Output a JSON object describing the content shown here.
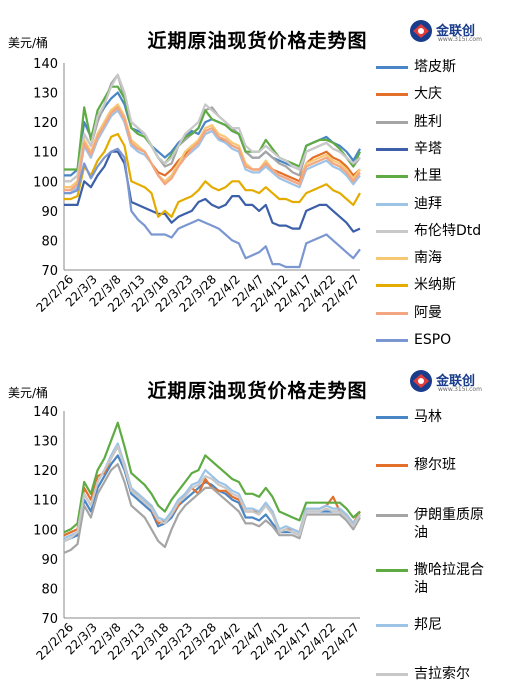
{
  "chart_data": [
    {
      "type": "line",
      "title": "近期原油现货价格走势图",
      "ylabel": "美元/桶",
      "ylim": [
        70,
        140
      ],
      "yticks": [
        70,
        80,
        90,
        100,
        110,
        120,
        130,
        140
      ],
      "xticks": [
        "22/2/26",
        "22/3/3",
        "22/3/8",
        "22/3/13",
        "22/3/18",
        "22/3/23",
        "22/3/28",
        "22/4/2",
        "22/4/7",
        "22/4/12",
        "22/4/17",
        "22/4/22",
        "22/4/27"
      ],
      "x": [
        "2/24",
        "2/25",
        "2/28",
        "3/1",
        "3/2",
        "3/3",
        "3/4",
        "3/7",
        "3/8",
        "3/9",
        "3/10",
        "3/11",
        "3/14",
        "3/15",
        "3/16",
        "3/17",
        "3/18",
        "3/21",
        "3/22",
        "3/23",
        "3/24",
        "3/25",
        "3/28",
        "3/29",
        "3/30",
        "3/31",
        "4/1",
        "4/4",
        "4/5",
        "4/6",
        "4/7",
        "4/8",
        "4/11",
        "4/12",
        "4/13",
        "4/14",
        "4/18",
        "4/19",
        "4/20",
        "4/21",
        "4/22",
        "4/25",
        "4/26",
        "4/27",
        "4/28"
      ],
      "legend_position": "right",
      "series": [
        {
          "name": "塔皮斯",
          "color": "#4a86c5",
          "values": [
            102,
            102,
            104,
            120,
            115,
            121,
            125,
            128,
            130,
            126,
            118,
            117,
            116,
            112,
            110,
            108,
            110,
            113,
            115,
            117,
            116,
            120,
            121,
            120,
            119,
            117,
            116,
            110,
            108,
            108,
            110,
            108,
            107,
            106,
            105,
            104,
            112,
            113,
            114,
            115,
            113,
            112,
            110,
            107,
            111
          ]
        },
        {
          "name": "大庆",
          "color": "#e2702a",
          "values": [
            98,
            98,
            100,
            112,
            108,
            116,
            120,
            124,
            125,
            120,
            112,
            111,
            110,
            106,
            103,
            102,
            104,
            107,
            109,
            112,
            113,
            116,
            117,
            115,
            113,
            112,
            111,
            106,
            104,
            104,
            106,
            104,
            103,
            102,
            101,
            100,
            106,
            108,
            109,
            110,
            108,
            107,
            105,
            102,
            104
          ]
        },
        {
          "name": "胜利",
          "color": "#a5a5a5",
          "values": [
            100,
            100,
            102,
            116,
            112,
            120,
            126,
            133,
            136,
            128,
            120,
            118,
            116,
            112,
            108,
            105,
            106,
            112,
            114,
            116,
            118,
            124,
            125,
            122,
            120,
            118,
            116,
            110,
            108,
            108,
            110,
            108,
            106,
            105,
            103,
            102,
            110,
            111,
            112,
            113,
            111,
            110,
            108,
            105,
            108
          ]
        },
        {
          "name": "辛塔",
          "color": "#3b5fa8",
          "values": [
            92,
            92,
            92,
            100,
            98,
            102,
            105,
            110,
            110,
            106,
            93,
            92,
            91,
            90,
            89,
            89,
            86,
            88,
            89,
            90,
            93,
            94,
            92,
            91,
            92,
            95,
            95,
            92,
            92,
            90,
            92,
            86,
            85,
            85,
            84,
            84,
            90,
            91,
            92,
            92,
            90,
            88,
            86,
            83,
            84
          ]
        },
        {
          "name": "杜里",
          "color": "#5eab43",
          "values": [
            104,
            104,
            104,
            125,
            114,
            124,
            128,
            132,
            132,
            128,
            118,
            116,
            115,
            112,
            108,
            106,
            109,
            112,
            115,
            116,
            118,
            124,
            121,
            120,
            119,
            117,
            116,
            110,
            110,
            110,
            114,
            111,
            108,
            107,
            106,
            105,
            112,
            113,
            114,
            114,
            113,
            111,
            108,
            105,
            110
          ]
        },
        {
          "name": "迪拜",
          "color": "#9dc3e6",
          "values": [
            96,
            96,
            98,
            112,
            108,
            114,
            118,
            122,
            124,
            120,
            112,
            110,
            109,
            106,
            102,
            100,
            102,
            106,
            108,
            110,
            112,
            116,
            117,
            114,
            113,
            111,
            110,
            104,
            103,
            103,
            105,
            103,
            101,
            100,
            99,
            98,
            104,
            105,
            106,
            107,
            105,
            104,
            102,
            99,
            102
          ]
        },
        {
          "name": "布伦特Dtd",
          "color": "#c8c8c8",
          "values": [
            100,
            100,
            102,
            116,
            112,
            122,
            126,
            132,
            136,
            130,
            120,
            118,
            116,
            112,
            108,
            106,
            108,
            112,
            116,
            118,
            120,
            126,
            124,
            122,
            120,
            118,
            118,
            112,
            110,
            110,
            112,
            110,
            108,
            107,
            105,
            104,
            110,
            111,
            112,
            113,
            111,
            110,
            108,
            106,
            108
          ]
        },
        {
          "name": "南海",
          "color": "#f7c873",
          "values": [
            98,
            98,
            100,
            114,
            110,
            116,
            120,
            124,
            126,
            122,
            114,
            112,
            110,
            106,
            102,
            100,
            102,
            106,
            110,
            112,
            114,
            118,
            119,
            116,
            115,
            113,
            112,
            106,
            104,
            104,
            107,
            104,
            102,
            101,
            100,
            99,
            106,
            107,
            108,
            109,
            107,
            106,
            104,
            101,
            104
          ]
        },
        {
          "name": "米纳斯",
          "color": "#e4ac00",
          "values": [
            94,
            94,
            95,
            105,
            102,
            107,
            110,
            115,
            116,
            112,
            100,
            99,
            98,
            96,
            88,
            90,
            88,
            93,
            94,
            95,
            97,
            100,
            98,
            97,
            98,
            100,
            100,
            97,
            97,
            96,
            98,
            96,
            94,
            94,
            93,
            93,
            96,
            97,
            98,
            99,
            97,
            96,
            94,
            92,
            96
          ]
        },
        {
          "name": "阿曼",
          "color": "#f4a582",
          "values": [
            97,
            97,
            99,
            113,
            109,
            115,
            119,
            123,
            125,
            121,
            113,
            111,
            110,
            106,
            102,
            99,
            101,
            105,
            108,
            111,
            113,
            117,
            118,
            115,
            114,
            112,
            111,
            105,
            104,
            104,
            106,
            104,
            102,
            101,
            100,
            99,
            105,
            106,
            107,
            108,
            106,
            105,
            103,
            100,
            103
          ]
        },
        {
          "name": "ESPO",
          "color": "#7b97d1",
          "values": [
            96,
            96,
            97,
            106,
            101,
            105,
            108,
            110,
            111,
            108,
            90,
            87,
            85,
            82,
            82,
            82,
            81,
            84,
            85,
            86,
            87,
            86,
            85,
            84,
            82,
            80,
            79,
            74,
            75,
            76,
            78,
            72,
            72,
            71,
            71,
            71,
            79,
            80,
            81,
            82,
            80,
            78,
            76,
            74,
            77
          ]
        }
      ]
    },
    {
      "type": "line",
      "title": "近期原油现货价格走势图",
      "ylabel": "美元/桶",
      "ylim": [
        70,
        140
      ],
      "yticks": [
        70,
        80,
        90,
        100,
        110,
        120,
        130,
        140
      ],
      "xticks": [
        "22/2/26",
        "22/3/3",
        "22/3/8",
        "22/3/13",
        "22/3/18",
        "22/3/23",
        "22/3/28",
        "22/4/2",
        "22/4/7",
        "22/4/12",
        "22/4/17",
        "22/4/22",
        "22/4/27"
      ],
      "x": [
        "2/24",
        "2/25",
        "2/28",
        "3/1",
        "3/2",
        "3/3",
        "3/4",
        "3/7",
        "3/8",
        "3/9",
        "3/10",
        "3/11",
        "3/14",
        "3/15",
        "3/16",
        "3/17",
        "3/18",
        "3/21",
        "3/22",
        "3/23",
        "3/24",
        "3/25",
        "3/28",
        "3/29",
        "3/30",
        "3/31",
        "4/1",
        "4/4",
        "4/5",
        "4/6",
        "4/7",
        "4/8",
        "4/11",
        "4/12",
        "4/13",
        "4/14",
        "4/18",
        "4/19",
        "4/20",
        "4/21",
        "4/22",
        "4/25",
        "4/26",
        "4/27",
        "4/28"
      ],
      "legend_position": "right",
      "series": [
        {
          "name": "马林",
          "color": "#4a86c5",
          "values": [
            96,
            97,
            98,
            110,
            106,
            114,
            118,
            122,
            125,
            120,
            112,
            110,
            108,
            106,
            101,
            102,
            104,
            108,
            110,
            112,
            114,
            116,
            115,
            113,
            112,
            110,
            109,
            104,
            104,
            103,
            105,
            102,
            99,
            99,
            99,
            98,
            106,
            106,
            106,
            106,
            106,
            106,
            104,
            101,
            105
          ]
        },
        {
          "name": "穆尔班",
          "color": "#e2702a",
          "values": [
            98,
            99,
            100,
            114,
            110,
            118,
            119,
            124,
            128,
            122,
            113,
            112,
            110,
            107,
            102,
            103,
            105,
            108,
            112,
            114,
            112,
            117,
            114,
            113,
            113,
            111,
            110,
            106,
            106,
            106,
            108,
            106,
            99,
            100,
            100,
            99,
            107,
            107,
            107,
            108,
            111,
            106,
            105,
            102,
            106
          ]
        },
        {
          "name": "伊朗重质原油",
          "color": "#a5a5a5",
          "values": [
            92,
            93,
            95,
            108,
            104,
            112,
            116,
            120,
            122,
            116,
            108,
            106,
            104,
            100,
            96,
            94,
            100,
            105,
            108,
            110,
            112,
            114,
            114,
            112,
            110,
            108,
            106,
            102,
            102,
            101,
            103,
            101,
            98,
            98,
            98,
            97,
            105,
            105,
            105,
            105,
            105,
            105,
            103,
            100,
            104
          ]
        },
        {
          "name": "撒哈拉混合油",
          "color": "#5eab43",
          "values": [
            99,
            100,
            102,
            116,
            112,
            120,
            124,
            130,
            136,
            128,
            119,
            117,
            115,
            112,
            108,
            106,
            110,
            113,
            116,
            119,
            120,
            125,
            123,
            121,
            119,
            117,
            116,
            112,
            112,
            111,
            114,
            111,
            106,
            105,
            104,
            103,
            109,
            109,
            109,
            109,
            109,
            109,
            107,
            104,
            106
          ]
        },
        {
          "name": "邦尼",
          "color": "#9dc3e6",
          "values": [
            97,
            98,
            99,
            112,
            108,
            116,
            120,
            125,
            129,
            122,
            114,
            112,
            110,
            108,
            104,
            103,
            106,
            110,
            112,
            115,
            116,
            120,
            118,
            116,
            115,
            113,
            112,
            107,
            107,
            106,
            109,
            106,
            100,
            101,
            100,
            99,
            107,
            107,
            107,
            108,
            107,
            107,
            105,
            102,
            105
          ]
        },
        {
          "name": "吉拉索尔",
          "color": "#c8c8c8",
          "values": [
            96,
            97,
            99,
            112,
            108,
            116,
            120,
            124,
            128,
            121,
            113,
            111,
            109,
            107,
            103,
            102,
            105,
            109,
            111,
            114,
            115,
            118,
            117,
            115,
            114,
            112,
            111,
            106,
            106,
            105,
            108,
            105,
            99,
            100,
            99,
            98,
            106,
            106,
            106,
            107,
            106,
            106,
            104,
            101,
            105
          ]
        }
      ]
    }
  ],
  "logo": {
    "name": "金联创",
    "sub": "www.315i.com"
  }
}
